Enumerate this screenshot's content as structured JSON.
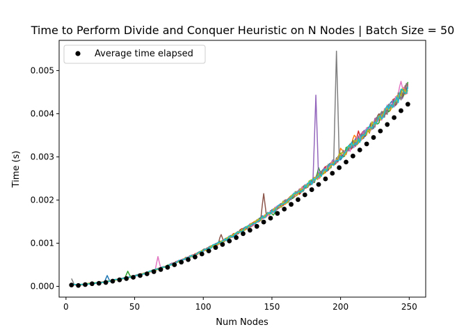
{
  "chart_data": {
    "type": "line",
    "title": "Time to Perform Divide and Conquer Heuristic on N Nodes | Batch Size = 50",
    "xlabel": "Num Nodes",
    "ylabel": "Time (s)",
    "xlim": [
      -5,
      262
    ],
    "ylim": [
      -0.00025,
      0.0057
    ],
    "xticks": [
      0,
      50,
      100,
      150,
      200,
      250
    ],
    "xtick_labels": [
      "0",
      "50",
      "100",
      "150",
      "200",
      "250"
    ],
    "yticks": [
      0,
      0.001,
      0.002,
      0.003,
      0.004,
      0.005
    ],
    "ytick_labels": [
      "0.000",
      "0.001",
      "0.002",
      "0.003",
      "0.004",
      "0.005"
    ],
    "grid": false,
    "legend": {
      "position": "top-left",
      "label": "Average time elapsed"
    },
    "average_series": {
      "x": [
        4,
        9,
        14,
        19,
        24,
        29,
        34,
        39,
        44,
        49,
        54,
        59,
        64,
        69,
        74,
        79,
        84,
        89,
        94,
        99,
        104,
        109,
        114,
        119,
        124,
        129,
        134,
        139,
        144,
        149,
        154,
        159,
        164,
        169,
        174,
        179,
        184,
        189,
        194,
        199,
        204,
        209,
        214,
        219,
        224,
        229,
        234,
        239,
        244,
        249
      ],
      "y": [
        3e-05,
        2e-05,
        4e-05,
        6e-05,
        7e-05,
        9e-05,
        0.00012,
        0.00015,
        0.00018,
        0.00021,
        0.00025,
        0.00029,
        0.00034,
        0.00039,
        0.00044,
        0.0005,
        0.00056,
        0.00062,
        0.00068,
        0.00075,
        0.00082,
        0.0009,
        0.00097,
        0.00105,
        0.00113,
        0.00122,
        0.0013,
        0.00139,
        0.00149,
        0.00158,
        0.00169,
        0.00179,
        0.0019,
        0.00201,
        0.00212,
        0.00224,
        0.00236,
        0.00249,
        0.00262,
        0.00275,
        0.00288,
        0.00302,
        0.00316,
        0.0033,
        0.00345,
        0.0036,
        0.00375,
        0.00391,
        0.00407,
        0.00422
      ],
      "color": "#000000"
    },
    "trial_colors": [
      "#1f77b4",
      "#ff7f0e",
      "#2ca02c",
      "#d62728",
      "#9467bd",
      "#8c564b",
      "#e377c2",
      "#7f7f7f",
      "#bcbd22",
      "#17becf"
    ],
    "spikes": [
      {
        "series": 7,
        "x": 4,
        "y": 0.00018
      },
      {
        "series": 0,
        "x": 30,
        "y": 0.00025
      },
      {
        "series": 2,
        "x": 45,
        "y": 0.00035
      },
      {
        "series": 6,
        "x": 67,
        "y": 0.00069
      },
      {
        "series": 5,
        "x": 113,
        "y": 0.0012
      },
      {
        "series": 5,
        "x": 144,
        "y": 0.00215
      },
      {
        "series": 2,
        "x": 151,
        "y": 0.00165
      },
      {
        "series": 4,
        "x": 182,
        "y": 0.00443
      },
      {
        "series": 2,
        "x": 184,
        "y": 0.00275
      },
      {
        "series": 7,
        "x": 197,
        "y": 0.00545
      },
      {
        "series": 1,
        "x": 200,
        "y": 0.0032
      },
      {
        "series": 1,
        "x": 210,
        "y": 0.0035
      },
      {
        "series": 3,
        "x": 213,
        "y": 0.0036
      },
      {
        "series": 6,
        "x": 244,
        "y": 0.00475
      },
      {
        "series": 5,
        "x": 249,
        "y": 0.00468
      }
    ]
  }
}
